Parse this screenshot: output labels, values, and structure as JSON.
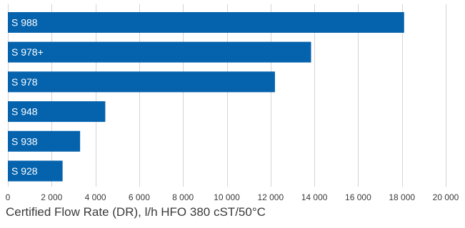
{
  "chart_data": {
    "type": "bar",
    "orientation": "horizontal",
    "categories": [
      "S 988",
      "S 978+",
      "S 978",
      "S 948",
      "S 938",
      "S 928"
    ],
    "values": [
      18100,
      13850,
      12200,
      4450,
      3300,
      2500
    ],
    "xlabel": "Certified Flow Rate (DR), l/h HFO 380 cST/50°C",
    "xlim": [
      0,
      20000
    ],
    "xticks": [
      0,
      2000,
      4000,
      6000,
      8000,
      10000,
      12000,
      14000,
      16000,
      18000,
      20000
    ],
    "xtick_labels": [
      "0",
      "2 000",
      "4 000",
      "6 000",
      "8 000",
      "10 000",
      "12 000",
      "14 000",
      "16 000",
      "18 000",
      "20 000"
    ],
    "grid": true,
    "bar_color": "#0563ad",
    "label_position": "inside-left"
  }
}
